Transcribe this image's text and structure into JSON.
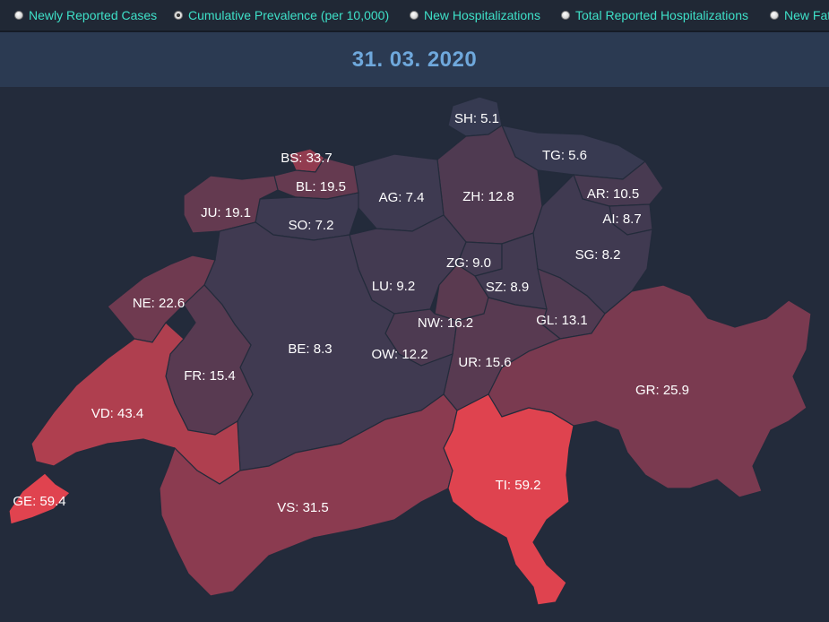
{
  "options": [
    {
      "label": "Newly Reported Cases",
      "checked": false
    },
    {
      "label": "Cumulative Prevalence (per 10,000)",
      "checked": true
    },
    {
      "label": "New Hospitalizations",
      "checked": false
    },
    {
      "label": "Total Reported Hospitalizations",
      "checked": false
    },
    {
      "label": "New Fat",
      "checked": false
    }
  ],
  "date": "31. 03. 2020",
  "colors": {
    "low": "#363a51",
    "mid": "#7d3a50",
    "high": "#e0434f"
  },
  "cantons": [
    {
      "code": "SH",
      "label": "SH: 5.1",
      "value": 5.1
    },
    {
      "code": "TG",
      "label": "TG: 5.6",
      "value": 5.6
    },
    {
      "code": "BS",
      "label": "BS: 33.7",
      "value": 33.7
    },
    {
      "code": "BL",
      "label": "BL: 19.5",
      "value": 19.5
    },
    {
      "code": "AG",
      "label": "AG: 7.4",
      "value": 7.4
    },
    {
      "code": "ZH",
      "label": "ZH: 12.8",
      "value": 12.8
    },
    {
      "code": "AR",
      "label": "AR: 10.5",
      "value": 10.5
    },
    {
      "code": "JU",
      "label": "JU: 19.1",
      "value": 19.1
    },
    {
      "code": "SO",
      "label": "SO: 7.2",
      "value": 7.2
    },
    {
      "code": "AI",
      "label": "AI: 8.7",
      "value": 8.7
    },
    {
      "code": "SG",
      "label": "SG: 8.2",
      "value": 8.2
    },
    {
      "code": "ZG",
      "label": "ZG: 9.0",
      "value": 9.0
    },
    {
      "code": "LU",
      "label": "LU: 9.2",
      "value": 9.2
    },
    {
      "code": "SZ",
      "label": "SZ: 8.9",
      "value": 8.9
    },
    {
      "code": "NE",
      "label": "NE: 22.6",
      "value": 22.6
    },
    {
      "code": "GL",
      "label": "GL: 13.1",
      "value": 13.1
    },
    {
      "code": "NW",
      "label": "NW: 16.2",
      "value": 16.2
    },
    {
      "code": "BE",
      "label": "BE: 8.3",
      "value": 8.3
    },
    {
      "code": "OW",
      "label": "OW: 12.2",
      "value": 12.2
    },
    {
      "code": "UR",
      "label": "UR: 15.6",
      "value": 15.6
    },
    {
      "code": "FR",
      "label": "FR: 15.4",
      "value": 15.4
    },
    {
      "code": "GR",
      "label": "GR: 25.9",
      "value": 25.9
    },
    {
      "code": "VD",
      "label": "VD: 43.4",
      "value": 43.4
    },
    {
      "code": "TI",
      "label": "TI: 59.2",
      "value": 59.2
    },
    {
      "code": "GE",
      "label": "GE: 59.4",
      "value": 59.4
    },
    {
      "code": "VS",
      "label": "VS: 31.5",
      "value": 31.5
    }
  ]
}
